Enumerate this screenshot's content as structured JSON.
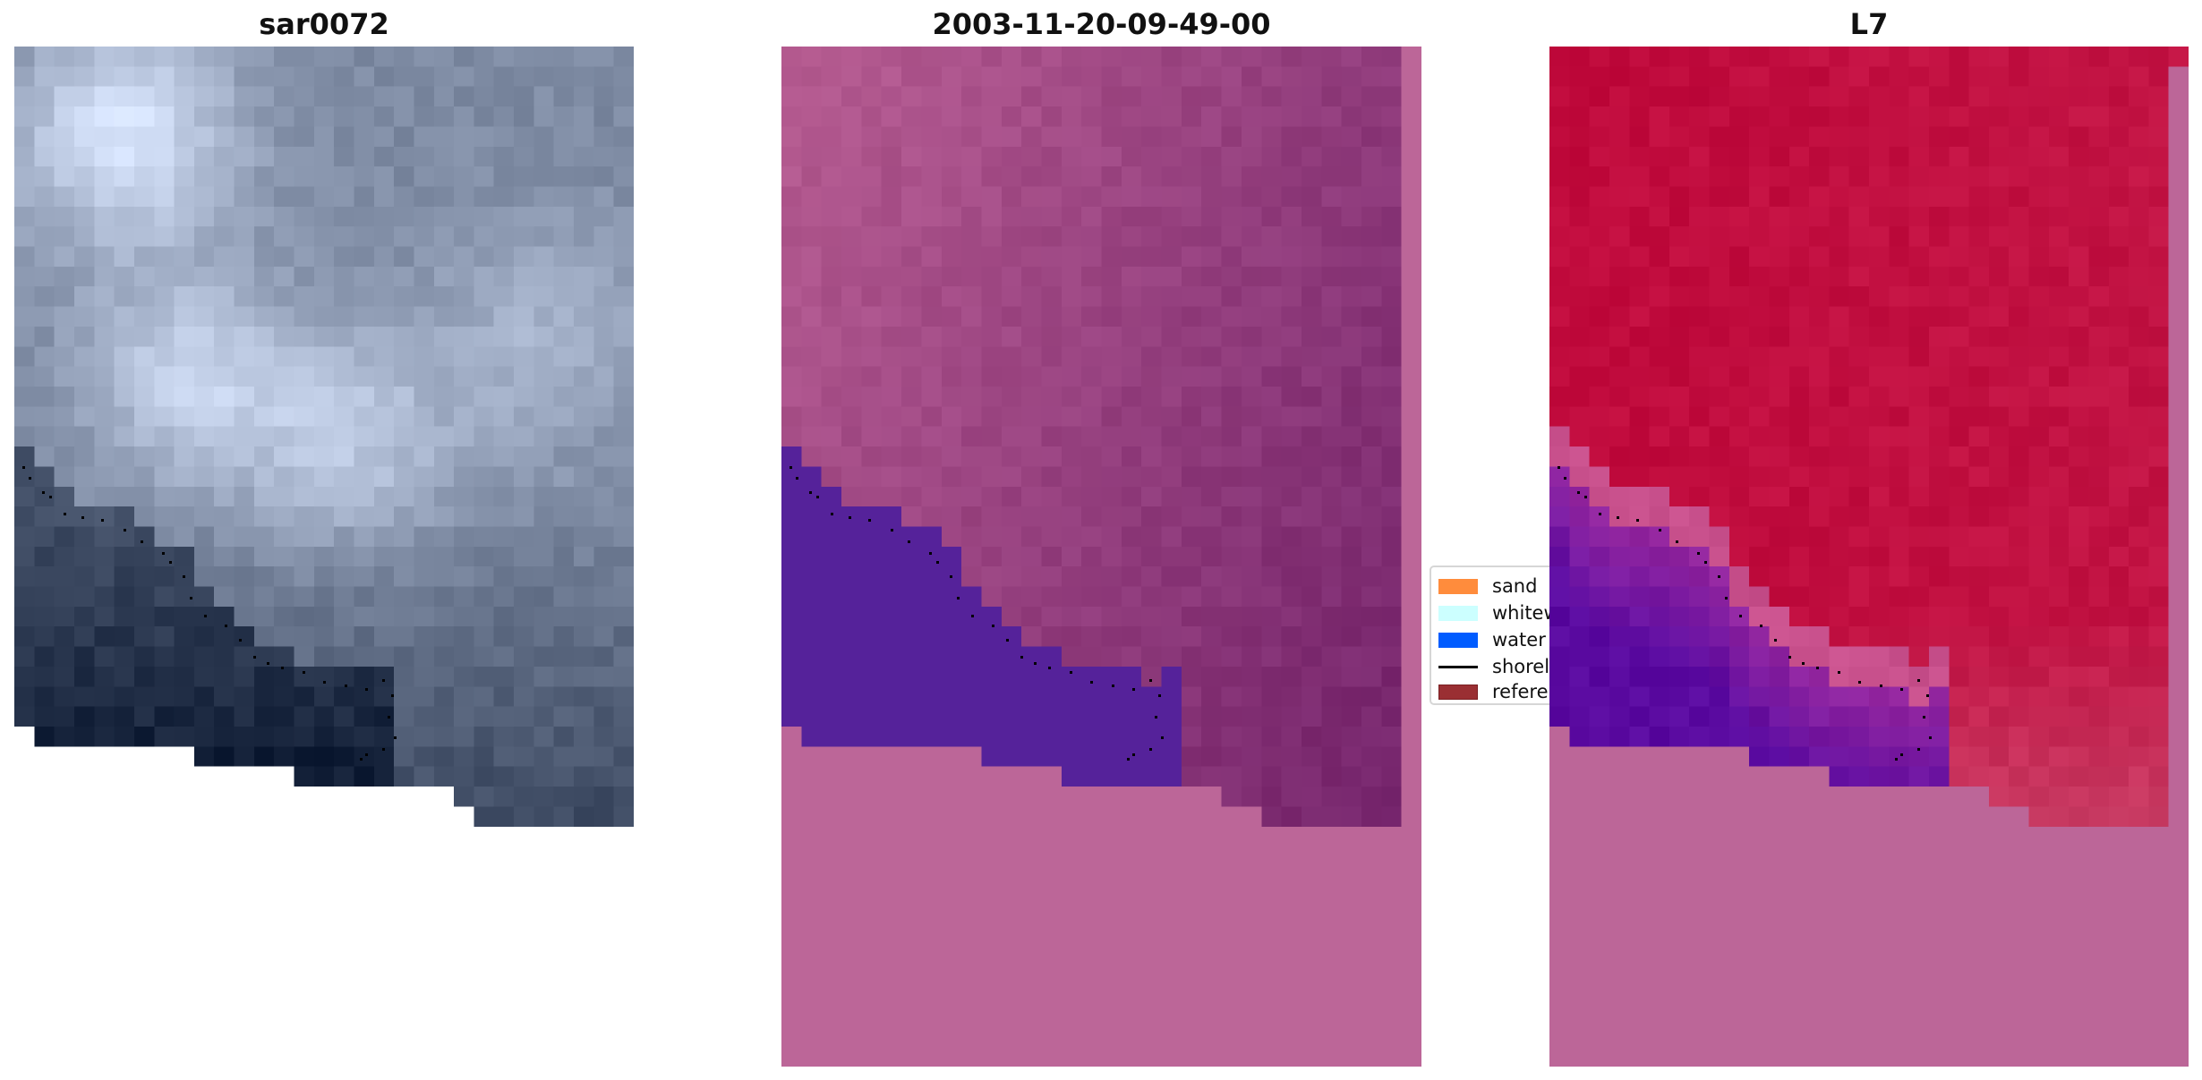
{
  "chart_data": {
    "type": "heatmap",
    "panels": [
      {
        "title": "sar0072",
        "kind": "rgb-image"
      },
      {
        "title": "2003-11-20-09-49-00",
        "kind": "classified-overlay"
      },
      {
        "title": "L7",
        "kind": "false-color-image"
      }
    ],
    "legend": {
      "placement": "center",
      "entries": [
        {
          "label": "sand",
          "color": "#ff8c3c",
          "kind": "patch"
        },
        {
          "label": "whitewater",
          "color": "#ccffff",
          "kind": "patch"
        },
        {
          "label": "water",
          "color": "#005cff",
          "kind": "patch"
        },
        {
          "label": "shoreline",
          "color": "#000000",
          "kind": "line"
        },
        {
          "label": "reference",
          "color": "#9a2f33",
          "kind": "patch"
        }
      ]
    },
    "axes_visible": false,
    "colors": {
      "nodata_fill": "#bc6698",
      "water_overlay": "#55229a",
      "shoreline_dots": "#000000"
    }
  }
}
